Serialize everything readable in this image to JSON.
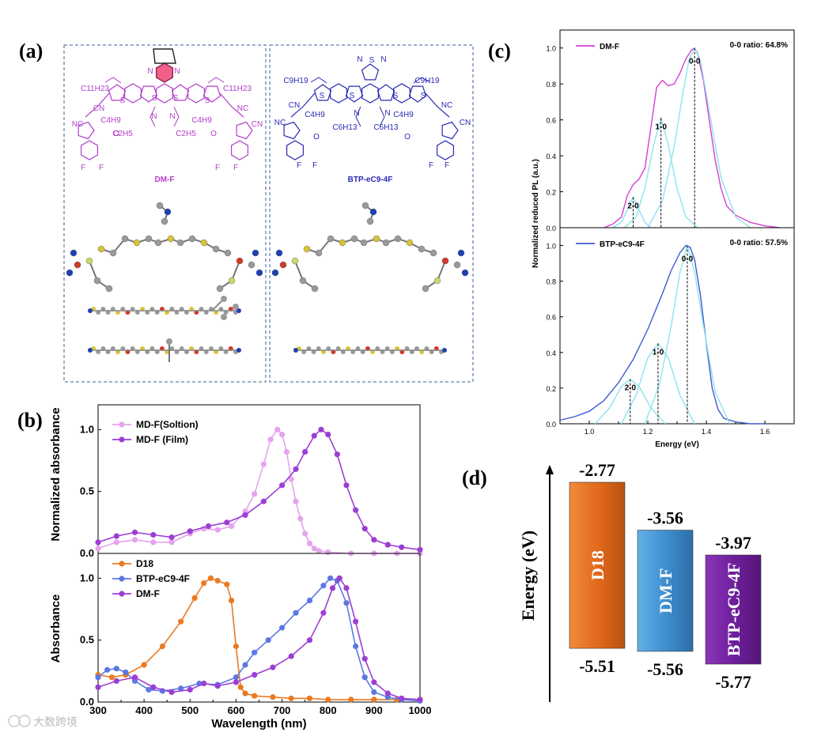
{
  "panels": {
    "a": "(a)",
    "b": "(b)",
    "c": "(c)",
    "d": "(d)"
  },
  "molecules": {
    "left": {
      "name": "DM-F",
      "color": "#b23ec9",
      "labels": [
        "C11H23",
        "C11H23",
        "C4H9",
        "C4H9",
        "C2H5",
        "C2H5",
        "NC",
        "CN",
        "NC",
        "CN",
        "O",
        "O",
        "F",
        "F",
        "F",
        "F",
        "S",
        "S",
        "S",
        "S",
        "N",
        "N",
        "N",
        "N"
      ]
    },
    "right": {
      "name": "BTP-eC9-4F",
      "color": "#2a2ab5",
      "labels": [
        "C9H19",
        "C9H19",
        "C4H9",
        "C4H9",
        "C6H13",
        "C6H13",
        "NC",
        "CN",
        "NC",
        "CN",
        "O",
        "O",
        "F",
        "F",
        "F",
        "F",
        "S",
        "S",
        "S",
        "S",
        "N",
        "N",
        "S",
        "N",
        "N"
      ]
    }
  },
  "watermark": "大数跨境",
  "chart_data": [
    {
      "id": "b-top",
      "type": "line",
      "xlim": [
        300,
        1000
      ],
      "ylim": [
        0,
        1.2
      ],
      "yticks": [
        "0.0",
        "0.5",
        "1.0"
      ],
      "ylabel": "Normalized absorbance",
      "legend_position": "top-left",
      "series": [
        {
          "name": "MD-F(Soltion)",
          "color": "#e6a3ee",
          "x": [
            300,
            340,
            380,
            420,
            460,
            500,
            530,
            560,
            590,
            620,
            640,
            660,
            675,
            690,
            700,
            710,
            720,
            730,
            740,
            750,
            760,
            770,
            780,
            800,
            850,
            900,
            950,
            1000
          ],
          "y": [
            0.04,
            0.09,
            0.11,
            0.09,
            0.09,
            0.16,
            0.2,
            0.19,
            0.22,
            0.34,
            0.48,
            0.72,
            0.92,
            1.0,
            0.96,
            0.82,
            0.6,
            0.42,
            0.28,
            0.16,
            0.08,
            0.04,
            0.02,
            0.01,
            0.0,
            0.0,
            0.0,
            0.0
          ]
        },
        {
          "name": "MD-F (Film)",
          "color": "#9b3fd4",
          "x": [
            300,
            340,
            380,
            420,
            460,
            500,
            540,
            580,
            620,
            660,
            700,
            730,
            750,
            770,
            785,
            800,
            820,
            840,
            860,
            880,
            900,
            930,
            960,
            1000
          ],
          "y": [
            0.09,
            0.14,
            0.17,
            0.15,
            0.13,
            0.18,
            0.22,
            0.25,
            0.31,
            0.42,
            0.55,
            0.68,
            0.82,
            0.95,
            1.0,
            0.96,
            0.8,
            0.55,
            0.35,
            0.2,
            0.11,
            0.07,
            0.05,
            0.03
          ]
        }
      ]
    },
    {
      "id": "b-bottom",
      "type": "line",
      "xlim": [
        300,
        1000
      ],
      "ylim": [
        0,
        1.2
      ],
      "xticks": [
        "300",
        "400",
        "500",
        "600",
        "700",
        "800",
        "900",
        "1000"
      ],
      "yticks": [
        "0.0",
        "0.5",
        "1.0"
      ],
      "xlabel": "Wavelength (nm)",
      "ylabel": "Absorbance",
      "legend_position": "top-left",
      "series": [
        {
          "name": "D18",
          "color": "#ea7a22",
          "x": [
            300,
            330,
            360,
            400,
            440,
            480,
            510,
            530,
            545,
            560,
            580,
            590,
            600,
            610,
            620,
            640,
            680,
            720,
            760,
            800,
            850,
            900,
            950,
            1000
          ],
          "y": [
            0.22,
            0.2,
            0.22,
            0.3,
            0.45,
            0.65,
            0.84,
            0.96,
            1.0,
            0.98,
            0.95,
            0.82,
            0.45,
            0.12,
            0.07,
            0.05,
            0.04,
            0.03,
            0.03,
            0.02,
            0.02,
            0.02,
            0.02,
            0.02
          ]
        },
        {
          "name": "BTP-eC9-4F",
          "color": "#5b78e3",
          "x": [
            300,
            320,
            340,
            360,
            380,
            410,
            440,
            480,
            520,
            560,
            600,
            620,
            640,
            670,
            700,
            730,
            760,
            790,
            805,
            820,
            840,
            860,
            880,
            900,
            930,
            960,
            1000
          ],
          "y": [
            0.2,
            0.26,
            0.27,
            0.24,
            0.17,
            0.1,
            0.09,
            0.11,
            0.15,
            0.14,
            0.2,
            0.3,
            0.4,
            0.5,
            0.6,
            0.72,
            0.82,
            0.94,
            1.0,
            0.98,
            0.8,
            0.45,
            0.2,
            0.08,
            0.04,
            0.02,
            0.01
          ]
        },
        {
          "name": "DM-F",
          "color": "#9b3fd4",
          "x": [
            300,
            340,
            380,
            420,
            460,
            500,
            530,
            560,
            600,
            640,
            680,
            720,
            760,
            790,
            810,
            825,
            840,
            860,
            880,
            900,
            930,
            960,
            1000
          ],
          "y": [
            0.12,
            0.17,
            0.2,
            0.12,
            0.08,
            0.1,
            0.15,
            0.13,
            0.16,
            0.22,
            0.28,
            0.37,
            0.5,
            0.72,
            0.92,
            1.0,
            0.92,
            0.65,
            0.35,
            0.16,
            0.07,
            0.03,
            0.02
          ]
        }
      ]
    },
    {
      "id": "c-top",
      "type": "line",
      "xlim": [
        0.9,
        1.7
      ],
      "ylim": [
        0,
        1.1
      ],
      "yticks": [
        "0.0",
        "0.2",
        "0.4",
        "0.6",
        "0.8",
        "1.0"
      ],
      "ylabel": "Normalized reduced PL (a.u.)",
      "legend_position": "top-left",
      "annotation": "0-0 ratio: 64.8%",
      "peak_labels": [
        {
          "text": "2-0",
          "x": 1.15,
          "y": 0.17
        },
        {
          "text": "1-0",
          "x": 1.245,
          "y": 0.61
        },
        {
          "text": "0-0",
          "x": 1.36,
          "y": 1.0
        }
      ],
      "series": [
        {
          "name": "DM-F",
          "color": "#d53fd5",
          "x": [
            1.05,
            1.08,
            1.11,
            1.13,
            1.15,
            1.17,
            1.19,
            1.21,
            1.23,
            1.25,
            1.27,
            1.29,
            1.31,
            1.33,
            1.35,
            1.36,
            1.37,
            1.39,
            1.41,
            1.43,
            1.45,
            1.47,
            1.5,
            1.55,
            1.6,
            1.65
          ],
          "y": [
            0.0,
            0.02,
            0.06,
            0.18,
            0.24,
            0.27,
            0.33,
            0.55,
            0.78,
            0.82,
            0.79,
            0.8,
            0.86,
            0.94,
            0.99,
            1.0,
            0.97,
            0.82,
            0.6,
            0.38,
            0.22,
            0.12,
            0.07,
            0.03,
            0.01,
            0.0
          ]
        },
        {
          "name": "",
          "color": "#8de3ee",
          "x": [
            1.08,
            1.11,
            1.13,
            1.15,
            1.17,
            1.19,
            1.21
          ],
          "y": [
            0.0,
            0.03,
            0.1,
            0.17,
            0.1,
            0.03,
            0.0
          ]
        },
        {
          "name": "",
          "color": "#8de3ee",
          "x": [
            1.12,
            1.16,
            1.19,
            1.22,
            1.245,
            1.27,
            1.3,
            1.33,
            1.37
          ],
          "y": [
            0.0,
            0.06,
            0.22,
            0.46,
            0.61,
            0.46,
            0.22,
            0.06,
            0.0
          ]
        },
        {
          "name": "",
          "color": "#8de3ee",
          "x": [
            1.2,
            1.25,
            1.29,
            1.32,
            1.34,
            1.36,
            1.38,
            1.41,
            1.45,
            1.5,
            1.55
          ],
          "y": [
            0.0,
            0.15,
            0.45,
            0.75,
            0.93,
            1.0,
            0.93,
            0.65,
            0.28,
            0.06,
            0.0
          ]
        }
      ]
    },
    {
      "id": "c-bottom",
      "type": "line",
      "xlim": [
        0.9,
        1.7
      ],
      "ylim": [
        0,
        1.1
      ],
      "xticks": [
        "1.0",
        "1.2",
        "1.4",
        "1.6"
      ],
      "yticks": [
        "0.0",
        "0.2",
        "0.4",
        "0.6",
        "0.8",
        "1.0"
      ],
      "xlabel": "Energy (eV)",
      "legend_position": "top-left",
      "annotation": "0-0 ratio: 57.5%",
      "peak_labels": [
        {
          "text": "2-0",
          "x": 1.14,
          "y": 0.25
        },
        {
          "text": "1-0",
          "x": 1.235,
          "y": 0.45
        },
        {
          "text": "0-0",
          "x": 1.335,
          "y": 1.0
        }
      ],
      "series": [
        {
          "name": "BTP-eC9-4F",
          "color": "#3f5bd0",
          "x": [
            0.9,
            0.95,
            1.0,
            1.05,
            1.1,
            1.15,
            1.2,
            1.25,
            1.28,
            1.31,
            1.33,
            1.345,
            1.36,
            1.38,
            1.4,
            1.42,
            1.44,
            1.46,
            1.5,
            1.55,
            1.6
          ],
          "y": [
            0.02,
            0.04,
            0.07,
            0.13,
            0.23,
            0.36,
            0.53,
            0.73,
            0.86,
            0.96,
            1.0,
            0.99,
            0.92,
            0.72,
            0.45,
            0.2,
            0.08,
            0.03,
            0.01,
            0.0,
            0.0
          ]
        },
        {
          "name": "",
          "color": "#8de3ee",
          "x": [
            1.02,
            1.07,
            1.11,
            1.14,
            1.17,
            1.21,
            1.26
          ],
          "y": [
            0.0,
            0.09,
            0.21,
            0.25,
            0.21,
            0.09,
            0.0
          ]
        },
        {
          "name": "",
          "color": "#8de3ee",
          "x": [
            1.11,
            1.16,
            1.2,
            1.235,
            1.27,
            1.31,
            1.36
          ],
          "y": [
            0.0,
            0.16,
            0.37,
            0.45,
            0.37,
            0.16,
            0.0
          ]
        },
        {
          "name": "",
          "color": "#8de3ee",
          "x": [
            1.19,
            1.24,
            1.28,
            1.31,
            1.335,
            1.36,
            1.39,
            1.43,
            1.48
          ],
          "y": [
            0.0,
            0.22,
            0.55,
            0.85,
            1.0,
            0.85,
            0.55,
            0.18,
            0.0
          ]
        }
      ]
    },
    {
      "id": "d",
      "type": "bar",
      "ylabel": "Energy (eV)",
      "bars": [
        {
          "name": "D18",
          "lumo": "-2.77",
          "homo": "-5.51",
          "color": "#e4772a",
          "lumo_value": -2.77,
          "homo_value": -5.51
        },
        {
          "name": "DM-F",
          "lumo": "-3.56",
          "homo": "-5.56",
          "color": "#4a9ad6",
          "lumo_value": -3.56,
          "homo_value": -5.56
        },
        {
          "name": "BTP-eC9-4F",
          "lumo": "-3.97",
          "homo": "-5.77",
          "color": "#7a2aa8",
          "lumo_value": -3.97,
          "homo_value": -5.77
        }
      ]
    }
  ]
}
